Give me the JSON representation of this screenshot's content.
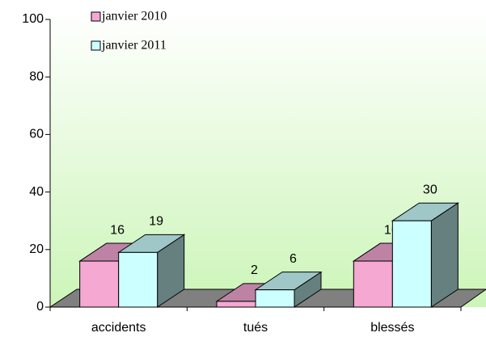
{
  "chart_data": {
    "type": "bar3d",
    "categories": [
      "accidents",
      "tués",
      "blessés"
    ],
    "series": [
      {
        "name": "janvier 2010",
        "color": "#f4a8d2",
        "values": [
          16,
          2,
          16
        ]
      },
      {
        "name": "janvier 2011",
        "color": "#ccffff",
        "values": [
          19,
          6,
          30
        ]
      }
    ],
    "ylim": [
      0,
      100
    ],
    "yticks": [
      0,
      20,
      40,
      60,
      80,
      100
    ]
  }
}
